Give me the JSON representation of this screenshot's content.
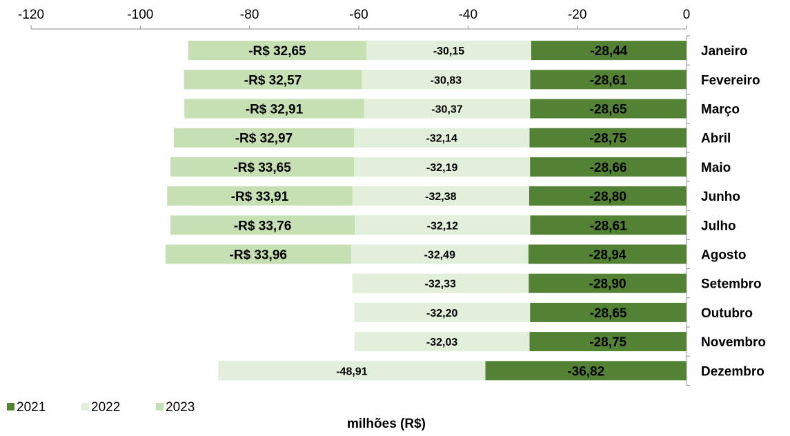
{
  "chart_data": {
    "type": "bar",
    "orientation": "horizontal",
    "stacked": true,
    "title": "",
    "xlabel": "milhões (R$)",
    "ylabel": "",
    "xlim": [
      -120,
      0
    ],
    "xticks": [
      -120,
      -100,
      -80,
      -60,
      -40,
      -20,
      0
    ],
    "axis_position": "top",
    "legend_position": "bottom-left",
    "grid": false,
    "categories": [
      "Janeiro",
      "Fevereiro",
      "Março",
      "Abril",
      "Maio",
      "Junho",
      "Julho",
      "Agosto",
      "Setembro",
      "Outubro",
      "Novembro",
      "Dezembro"
    ],
    "series": [
      {
        "name": "2021",
        "color": "#548235",
        "values": [
          -28.44,
          -28.61,
          -28.65,
          -28.75,
          -28.66,
          -28.8,
          -28.61,
          -28.94,
          -28.9,
          -28.65,
          -28.75,
          -36.82
        ],
        "labels": [
          "-28,44",
          "-28,61",
          "-28,65",
          "-28,75",
          "-28,66",
          "-28,80",
          "-28,61",
          "-28,94",
          "-28,90",
          "-28,65",
          "-28,75",
          "-36,82"
        ]
      },
      {
        "name": "2022",
        "color": "#e2efda",
        "values": [
          -30.15,
          -30.83,
          -30.37,
          -32.14,
          -32.19,
          -32.38,
          -32.12,
          -32.49,
          -32.33,
          -32.2,
          -32.03,
          -48.91
        ],
        "labels": [
          "-30,15",
          "-30,83",
          "-30,37",
          "-32,14",
          "-32,19",
          "-32,38",
          "-32,12",
          "-32,49",
          "-32,33",
          "-32,20",
          "-32,03",
          "-48,91"
        ]
      },
      {
        "name": "2023",
        "color": "#c6e0b4",
        "values": [
          -32.65,
          -32.57,
          -32.91,
          -32.97,
          -33.65,
          -33.91,
          -33.76,
          -33.96,
          null,
          null,
          null,
          null
        ],
        "labels": [
          "-R$ 32,65",
          "-R$ 32,57",
          "-R$ 32,91",
          "-R$ 32,97",
          "-R$ 33,65",
          "-R$ 33,91",
          "-R$ 33,76",
          "-R$ 33,96",
          "",
          "",
          "",
          ""
        ]
      }
    ]
  }
}
